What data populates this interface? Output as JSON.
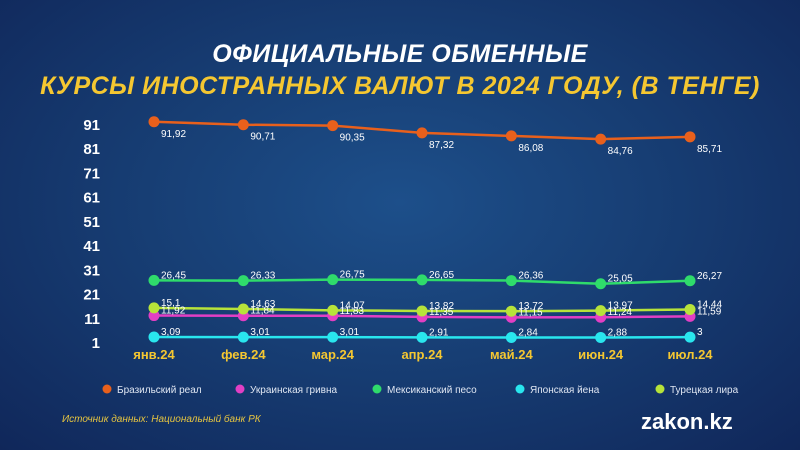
{
  "title_line1": "ОФИЦИАЛЬНЫЕ ОБМЕННЫЕ",
  "title_line2": "КУРСЫ ИНОСТРАННЫХ ВАЛЮТ В 2024 ГОДУ,  (В ТЕНГЕ)",
  "source": "Источник данных: Национальный банк РК",
  "brand": "zakon.kz",
  "chart_data": {
    "type": "line",
    "categories": [
      "янв.24",
      "фев.24",
      "мар.24",
      "апр.24",
      "май.24",
      "июн.24",
      "июл.24"
    ],
    "y_ticks": [
      1,
      11,
      21,
      31,
      41,
      51,
      61,
      71,
      81,
      91
    ],
    "ylim": [
      1,
      91
    ],
    "grid": false,
    "legend_position": "bottom",
    "series": [
      {
        "name": "Бразильский реал",
        "color": "#e8601c",
        "values": [
          91.92,
          90.71,
          90.35,
          87.32,
          86.08,
          84.76,
          85.71
        ],
        "labels": [
          "91,92",
          "90,71",
          "90,35",
          "87,32",
          "86,08",
          "84,76",
          "85,71"
        ]
      },
      {
        "name": "Украинская гривна",
        "color": "#e23fc4",
        "values": [
          11.92,
          11.84,
          11.83,
          11.35,
          11.15,
          11.24,
          11.59
        ],
        "labels": [
          "11,92",
          "11,84",
          "11,83",
          "11,35",
          "11,15",
          "11,24",
          "11,59"
        ]
      },
      {
        "name": "Мексиканский песо",
        "color": "#2fdb6b",
        "values": [
          26.45,
          26.33,
          26.75,
          26.65,
          26.36,
          25.05,
          26.27
        ],
        "labels": [
          "26,45",
          "26,33",
          "26,75",
          "26,65",
          "26,36",
          "25,05",
          "26,27"
        ]
      },
      {
        "name": "Японская йена",
        "color": "#29e6ee",
        "values": [
          3.09,
          3.01,
          3.01,
          2.91,
          2.84,
          2.88,
          3.0
        ],
        "labels": [
          "3,09",
          "3,01",
          "3,01",
          "2,91",
          "2,84",
          "2,88",
          "3"
        ]
      },
      {
        "name": "Турецкая лира",
        "color": "#b7e33a",
        "values": [
          15.1,
          14.63,
          14.07,
          13.82,
          13.72,
          13.97,
          14.44
        ],
        "labels": [
          "15,1",
          "14,63",
          "14,07",
          "13,82",
          "13,72",
          "13,97",
          "14,44"
        ]
      }
    ]
  }
}
